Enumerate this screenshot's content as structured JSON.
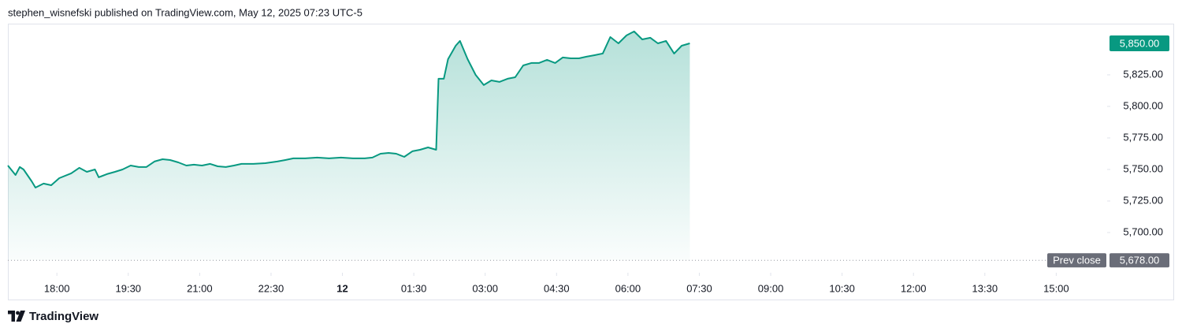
{
  "header": "stephen_wisnefski published on TradingView.com, May 12, 2025 07:23 UTC-5",
  "footer": "TradingView",
  "chart_data": {
    "type": "area",
    "color": "#089981",
    "x": [
      16.97,
      17.13,
      17.22,
      17.3,
      17.47,
      17.55,
      17.72,
      17.88,
      18.05,
      18.3,
      18.47,
      18.63,
      18.8,
      18.88,
      19.05,
      19.22,
      19.38,
      19.55,
      19.72,
      19.88,
      20.05,
      20.22,
      20.38,
      20.55,
      20.72,
      20.88,
      21.05,
      21.22,
      21.38,
      21.55,
      21.72,
      21.88,
      22.13,
      22.38,
      22.63,
      22.8,
      22.97,
      23.22,
      23.47,
      23.72,
      23.97,
      24.22,
      24.47,
      24.63,
      24.8,
      24.97,
      25.13,
      25.3,
      25.47,
      25.63,
      25.8,
      25.97,
      26.02,
      26.13,
      26.22,
      26.38,
      26.47,
      26.63,
      26.8,
      26.97,
      27.13,
      27.3,
      27.47,
      27.63,
      27.8,
      27.97,
      28.13,
      28.3,
      28.47,
      28.63,
      28.8,
      28.97,
      29.13,
      29.3,
      29.47,
      29.63,
      29.8,
      29.97,
      30.13,
      30.3,
      30.47,
      30.63,
      30.8,
      30.97,
      31.13,
      31.3
    ],
    "values": [
      5753.1,
      5745.6,
      5751.9,
      5750,
      5740.6,
      5735.6,
      5738.8,
      5737.5,
      5743.1,
      5746.9,
      5751.3,
      5748.1,
      5750,
      5743.8,
      5746.3,
      5748.1,
      5750,
      5753.1,
      5751.9,
      5751.9,
      5756.3,
      5758.1,
      5757.5,
      5755.6,
      5753.1,
      5753.8,
      5753.1,
      5754.4,
      5752.5,
      5751.9,
      5753.1,
      5754.4,
      5754.4,
      5755,
      5756.3,
      5757.5,
      5758.8,
      5758.8,
      5759.4,
      5758.8,
      5759.4,
      5758.8,
      5758.8,
      5759.4,
      5762.5,
      5763.1,
      5762.5,
      5760,
      5764.4,
      5765.6,
      5767.5,
      5765.6,
      5821.9,
      5821.9,
      5837.5,
      5848.1,
      5851.9,
      5837.5,
      5825,
      5816.9,
      5820.6,
      5819.4,
      5821.9,
      5823.1,
      5832.5,
      5834.4,
      5834.4,
      5836.9,
      5834.4,
      5838.8,
      5838.1,
      5838.1,
      5839.4,
      5840.6,
      5841.9,
      5855,
      5850,
      5856.3,
      5859.4,
      5853.1,
      5854.4,
      5850,
      5851.9,
      5841.9,
      5848.1,
      5850
    ],
    "xlim": [
      16.97,
      40.07
    ],
    "xticks": [
      {
        "value": 18,
        "label": "18:00"
      },
      {
        "value": 19.5,
        "label": "19:30"
      },
      {
        "value": 21,
        "label": "21:00"
      },
      {
        "value": 22.5,
        "label": "22:30"
      },
      {
        "value": 24,
        "label": "12"
      },
      {
        "value": 25.5,
        "label": "01:30"
      },
      {
        "value": 27,
        "label": "03:00"
      },
      {
        "value": 28.5,
        "label": "04:30"
      },
      {
        "value": 30,
        "label": "06:00"
      },
      {
        "value": 31.5,
        "label": "07:30"
      },
      {
        "value": 33,
        "label": "09:00"
      },
      {
        "value": 34.5,
        "label": "10:30"
      },
      {
        "value": 36,
        "label": "12:00"
      },
      {
        "value": 37.5,
        "label": "13:30"
      },
      {
        "value": 39,
        "label": "15:00"
      }
    ],
    "ylim": [
      5668.75,
      5865.6
    ],
    "yticks": [
      {
        "value": 5825,
        "label": "5,825.00"
      },
      {
        "value": 5800,
        "label": "5,800.00"
      },
      {
        "value": 5775,
        "label": "5,775.00"
      },
      {
        "value": 5750,
        "label": "5,750.00"
      },
      {
        "value": 5725,
        "label": "5,725.00"
      },
      {
        "value": 5700,
        "label": "5,700.00"
      }
    ],
    "last_price": {
      "value": 5850,
      "label": "5,850.00",
      "color": "#089981"
    },
    "prev_close": {
      "name": "Prev close",
      "value": 5678,
      "label": "5,678.00",
      "color": "#6a6d78"
    }
  }
}
